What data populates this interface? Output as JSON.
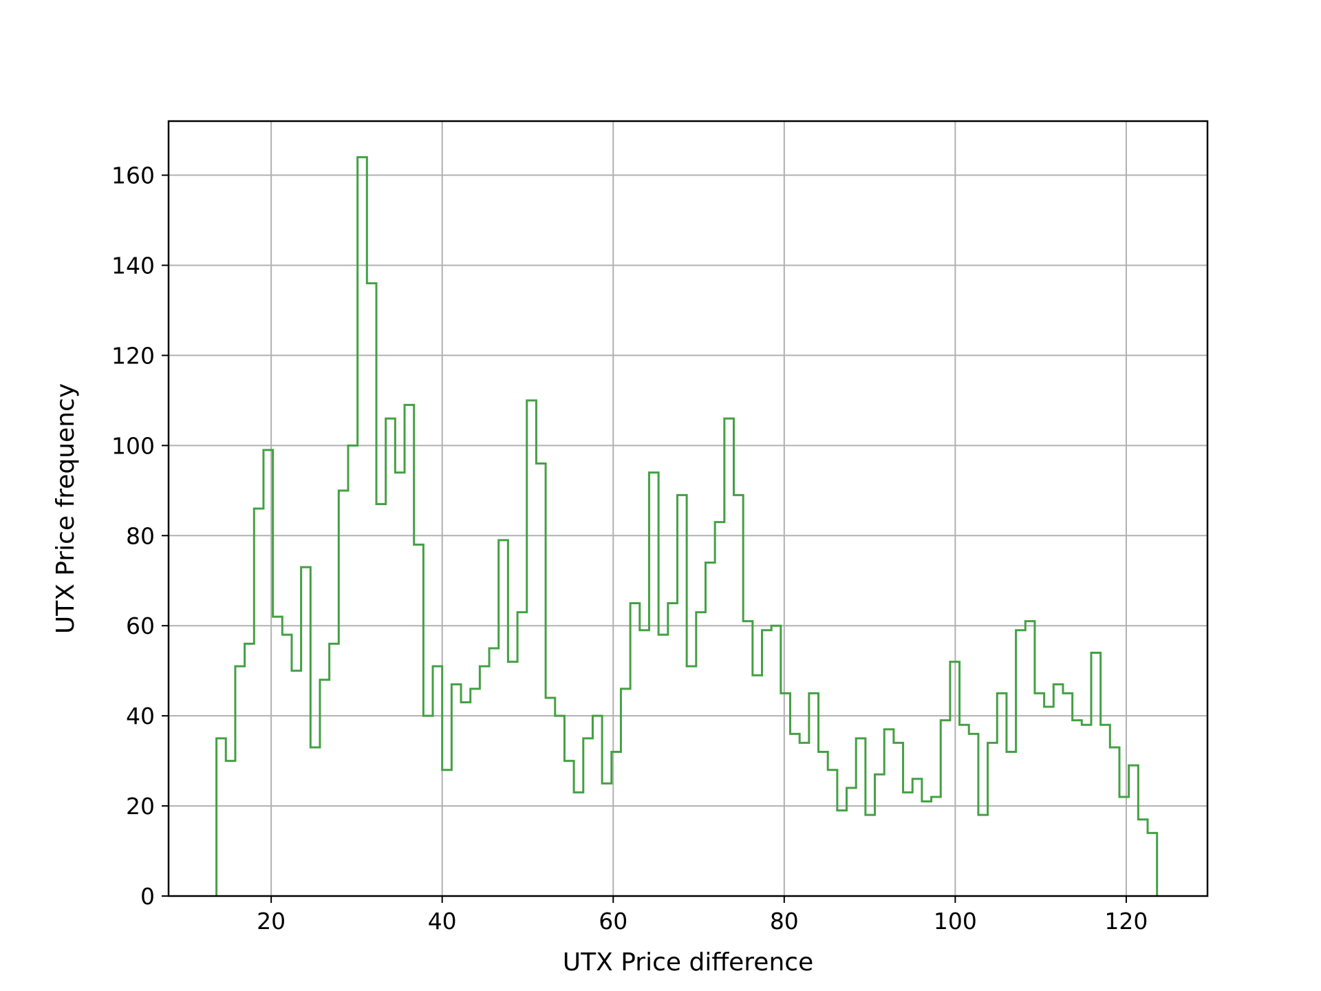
{
  "chart_data": {
    "type": "histogram",
    "title": "",
    "xlabel": "UTX Price difference",
    "ylabel": "UTX Price frequency",
    "xlim": [
      8,
      129.5
    ],
    "ylim": [
      0,
      172
    ],
    "grid": true,
    "histtype": "step",
    "color": "#44a043",
    "xticks": [
      20,
      40,
      60,
      80,
      100,
      120
    ],
    "yticks": [
      0,
      20,
      40,
      60,
      80,
      100,
      120,
      140,
      160
    ],
    "bin_start": 13.6,
    "bin_width": 1.1,
    "counts": [
      35,
      30,
      51,
      56,
      86,
      99,
      62,
      58,
      50,
      73,
      33,
      48,
      56,
      90,
      100,
      164,
      136,
      87,
      106,
      94,
      109,
      78,
      40,
      51,
      28,
      47,
      43,
      46,
      51,
      55,
      79,
      52,
      63,
      110,
      96,
      44,
      40,
      30,
      23,
      35,
      40,
      25,
      32,
      46,
      65,
      59,
      94,
      58,
      65,
      89,
      51,
      63,
      74,
      83,
      106,
      89,
      61,
      49,
      59,
      60,
      45,
      36,
      34,
      45,
      32,
      28,
      19,
      24,
      35,
      18,
      27,
      37,
      34,
      23,
      26,
      21,
      22,
      39,
      52,
      38,
      36,
      18,
      34,
      45,
      32,
      59,
      61,
      45,
      42,
      47,
      45,
      39,
      38,
      54,
      38,
      33,
      22,
      29,
      17,
      14
    ]
  }
}
